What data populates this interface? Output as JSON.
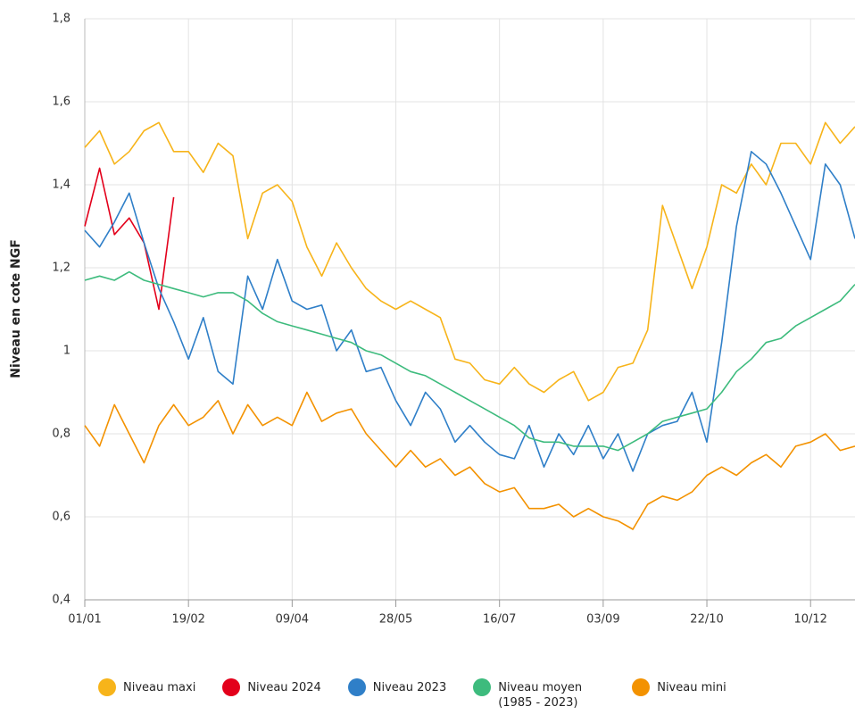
{
  "chart_data": {
    "type": "line",
    "y_label": "Niveau en cote NGF",
    "categories": [
      "01/01",
      null,
      null,
      null,
      null,
      null,
      null,
      "19/02",
      null,
      null,
      null,
      null,
      null,
      null,
      "09/04",
      null,
      null,
      null,
      null,
      null,
      null,
      "28/05",
      null,
      null,
      null,
      null,
      null,
      null,
      "16/07",
      null,
      null,
      null,
      null,
      null,
      null,
      "03/09",
      null,
      null,
      null,
      null,
      null,
      null,
      "22/10",
      null,
      null,
      null,
      null,
      null,
      null,
      "10/12",
      null,
      null,
      null
    ],
    "ylim": [
      0.4,
      1.8
    ],
    "yticks": [
      {
        "value": 0.4,
        "label": "0,4"
      },
      {
        "value": 0.6,
        "label": "0,6"
      },
      {
        "value": 0.8,
        "label": "0,8"
      },
      1,
      {
        "value": 1.2,
        "label": "1,2"
      },
      {
        "value": 1.4,
        "label": "1,4"
      },
      {
        "value": 1.6,
        "label": "1,6"
      },
      {
        "value": 1.8,
        "label": "1,8"
      }
    ],
    "grid": true,
    "legend": "bottom",
    "series": [
      {
        "name": "Niveau maxi",
        "color": "#f7b41a",
        "values": [
          1.49,
          1.53,
          1.45,
          1.48,
          1.53,
          1.55,
          1.48,
          1.48,
          1.43,
          1.5,
          1.47,
          1.27,
          1.38,
          1.4,
          1.36,
          1.25,
          1.18,
          1.26,
          1.2,
          1.15,
          1.12,
          1.1,
          1.12,
          1.1,
          1.08,
          0.98,
          0.97,
          0.93,
          0.92,
          0.96,
          0.92,
          0.9,
          0.93,
          0.95,
          0.88,
          0.9,
          0.96,
          0.97,
          1.05,
          1.35,
          1.25,
          1.15,
          1.25,
          1.4,
          1.38,
          1.45,
          1.4,
          1.5,
          1.5,
          1.45,
          1.55,
          1.5,
          1.54
        ]
      },
      {
        "name": "Niveau 2024",
        "color": "#e3001b",
        "values": [
          1.3,
          1.44,
          1.28,
          1.32,
          1.26,
          1.1,
          1.37,
          null,
          null,
          null,
          null,
          null,
          null,
          null,
          null,
          null,
          null,
          null,
          null,
          null,
          null,
          null,
          null,
          null,
          null,
          null,
          null,
          null,
          null,
          null,
          null,
          null,
          null,
          null,
          null,
          null,
          null,
          null,
          null,
          null,
          null,
          null,
          null,
          null,
          null,
          null,
          null,
          null,
          null,
          null,
          null,
          null,
          null
        ]
      },
      {
        "name": "Niveau 2023",
        "color": "#2f7fc8",
        "values": [
          1.29,
          1.25,
          1.31,
          1.38,
          1.26,
          1.15,
          1.07,
          0.98,
          1.08,
          0.95,
          0.92,
          1.18,
          1.1,
          1.22,
          1.12,
          1.1,
          1.11,
          1.0,
          1.05,
          0.95,
          0.96,
          0.88,
          0.82,
          0.9,
          0.86,
          0.78,
          0.82,
          0.78,
          0.75,
          0.74,
          0.82,
          0.72,
          0.8,
          0.75,
          0.82,
          0.74,
          0.8,
          0.71,
          0.8,
          0.82,
          0.83,
          0.9,
          0.78,
          1.02,
          1.3,
          1.48,
          1.45,
          1.38,
          1.3,
          1.22,
          1.45,
          1.4,
          1.27
        ]
      },
      {
        "name": "Niveau moyen (1985 - 2023)",
        "color": "#3dbb7d",
        "values": [
          1.17,
          1.18,
          1.17,
          1.19,
          1.17,
          1.16,
          1.15,
          1.14,
          1.13,
          1.14,
          1.14,
          1.12,
          1.09,
          1.07,
          1.06,
          1.05,
          1.04,
          1.03,
          1.02,
          1.0,
          0.99,
          0.97,
          0.95,
          0.94,
          0.92,
          0.9,
          0.88,
          0.86,
          0.84,
          0.82,
          0.79,
          0.78,
          0.78,
          0.77,
          0.77,
          0.77,
          0.76,
          0.78,
          0.8,
          0.83,
          0.84,
          0.85,
          0.86,
          0.9,
          0.95,
          0.98,
          1.02,
          1.03,
          1.06,
          1.08,
          1.1,
          1.12,
          1.16
        ]
      },
      {
        "name": "Niveau mini",
        "color": "#f39200",
        "values": [
          0.82,
          0.77,
          0.87,
          0.8,
          0.73,
          0.82,
          0.87,
          0.82,
          0.84,
          0.88,
          0.8,
          0.87,
          0.82,
          0.84,
          0.82,
          0.9,
          0.83,
          0.85,
          0.86,
          0.8,
          0.76,
          0.72,
          0.76,
          0.72,
          0.74,
          0.7,
          0.72,
          0.68,
          0.66,
          0.67,
          0.62,
          0.62,
          0.63,
          0.6,
          0.62,
          0.6,
          0.59,
          0.57,
          0.63,
          0.65,
          0.64,
          0.66,
          0.7,
          0.72,
          0.7,
          0.73,
          0.75,
          0.72,
          0.77,
          0.78,
          0.8,
          0.76,
          0.77
        ]
      }
    ]
  }
}
